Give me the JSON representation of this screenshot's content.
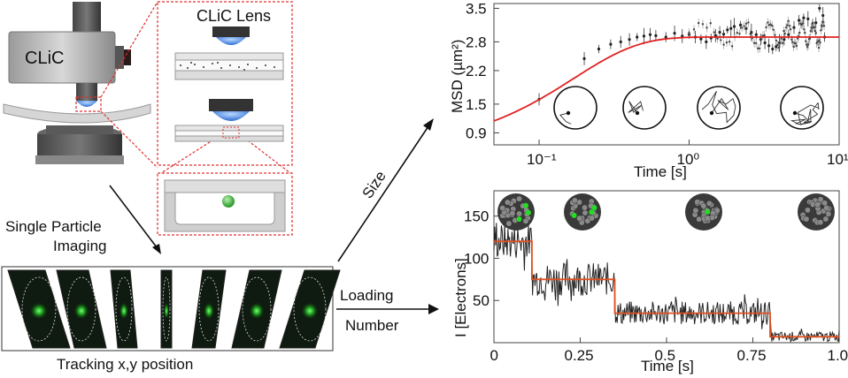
{
  "labels": {
    "device": "CLiC",
    "lens_title": "CLiC Lens",
    "single_particle_line1": "Single Particle",
    "single_particle_line2": "Imaging",
    "tracking": "Tracking x,y position",
    "size_arrow": "Size",
    "loading_line1": "Loading",
    "loading_line2": "Number"
  },
  "chart_data": [
    {
      "type": "scatter",
      "xlabel": "Time [s]",
      "ylabel": "MSD (µm²)",
      "xscale": "log",
      "xlim": [
        0.05,
        10
      ],
      "ylim": [
        0.65,
        3.6
      ],
      "xticks": [
        {
          "v": 0.1,
          "label": "10⁻¹"
        },
        {
          "v": 1,
          "label": "10⁰"
        },
        {
          "v": 10,
          "label": "10¹"
        }
      ],
      "yticks": [
        "0.9",
        "1.5",
        "2.2",
        "2.8",
        "3.5"
      ],
      "fit_curve": {
        "color": "#e02020",
        "plateau": 2.9,
        "tau": 0.17,
        "offset": 0.55
      },
      "points": [
        [
          0.1,
          1.6
        ],
        [
          0.2,
          2.45
        ],
        [
          0.25,
          2.65
        ],
        [
          0.3,
          2.75
        ],
        [
          0.35,
          2.8
        ],
        [
          0.4,
          2.85
        ],
        [
          0.45,
          2.9
        ],
        [
          0.5,
          2.92
        ],
        [
          0.55,
          2.95
        ],
        [
          0.6,
          2.93
        ],
        [
          0.7,
          2.9
        ],
        [
          0.8,
          2.98
        ],
        [
          0.9,
          2.92
        ],
        [
          1.0,
          2.95
        ],
        [
          1.1,
          2.9
        ],
        [
          1.2,
          2.86
        ],
        [
          1.3,
          2.8
        ],
        [
          1.4,
          2.88
        ],
        [
          1.5,
          2.93
        ],
        [
          1.6,
          3.0
        ],
        [
          1.7,
          2.96
        ],
        [
          1.8,
          3.05
        ],
        [
          1.9,
          3.08
        ],
        [
          2.0,
          3.12
        ],
        [
          2.2,
          3.15
        ],
        [
          2.4,
          3.08
        ],
        [
          2.6,
          3.0
        ],
        [
          2.8,
          2.95
        ],
        [
          3.0,
          2.85
        ],
        [
          3.2,
          2.78
        ],
        [
          3.4,
          2.72
        ],
        [
          3.6,
          2.65
        ],
        [
          3.8,
          2.7
        ],
        [
          4.0,
          2.78
        ],
        [
          4.3,
          2.85
        ],
        [
          4.6,
          2.95
        ],
        [
          5.0,
          3.1
        ],
        [
          5.4,
          3.25
        ],
        [
          5.8,
          3.3
        ],
        [
          6.2,
          3.28
        ],
        [
          6.6,
          3.1
        ],
        [
          7.0,
          3.2
        ],
        [
          7.4,
          3.5
        ],
        [
          7.8,
          3.35
        ],
        [
          8.0,
          2.9
        ]
      ]
    },
    {
      "type": "line",
      "xlabel": "Time [s]",
      "ylabel": "I [Electrons]",
      "xlim": [
        0,
        1.0
      ],
      "ylim": [
        0,
        180
      ],
      "xticks": [
        "0",
        "0.25",
        "0.5",
        "0.75",
        "1.0"
      ],
      "yticks": [
        "50",
        "100",
        "150"
      ],
      "series": [
        {
          "color": "#222",
          "noisy": true
        },
        {
          "color": "#e05020",
          "steps": [
            {
              "x0": 0.0,
              "x1": 0.11,
              "y": 120
            },
            {
              "x0": 0.11,
              "x1": 0.35,
              "y": 75
            },
            {
              "x0": 0.35,
              "x1": 0.8,
              "y": 35
            },
            {
              "x0": 0.8,
              "x1": 1.0,
              "y": 7
            }
          ]
        }
      ],
      "insets": [
        3,
        3,
        1,
        0
      ]
    }
  ]
}
